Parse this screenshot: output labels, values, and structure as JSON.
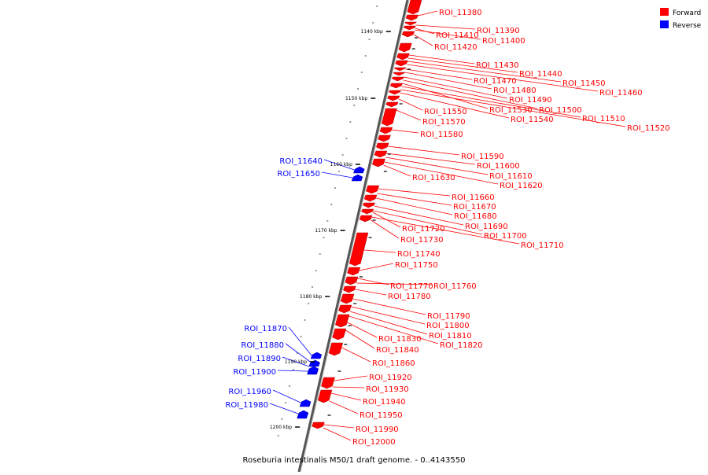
{
  "caption": "Roseburia intestinalis M50/1 draft genome. - 0..4143550",
  "legend": [
    {
      "label": "Forward",
      "color": "#ff0000"
    },
    {
      "label": "Reverse",
      "color": "#0000ff"
    }
  ],
  "colors": {
    "forward": "#ff0000",
    "reverse": "#0000ff",
    "backbone": "#777777"
  },
  "ticks": [
    "1140 kbp",
    "1150 kbp",
    "1160 kbp",
    "1170 kbp",
    "1180 kbp",
    "1190 kbp",
    "1200 kbp"
  ],
  "forward_labels": [
    "ROI_11380",
    "ROI_11390",
    "ROI_11410",
    "ROI_11400",
    "ROI_11420",
    "ROI_11430",
    "ROI_11440",
    "ROI_11450",
    "ROI_11460",
    "ROI_11470",
    "ROI_11480",
    "ROI_11490",
    "ROI_11500",
    "ROI_11530",
    "ROI_11510",
    "ROI_11520",
    "ROI_11540",
    "ROI_11550",
    "ROI_11570",
    "ROI_11580",
    "ROI_11590",
    "ROI_11600",
    "ROI_11610",
    "ROI_11620",
    "ROI_11630",
    "ROI_11660",
    "ROI_11670",
    "ROI_11680",
    "ROI_11690",
    "ROI_11700",
    "ROI_11710",
    "ROI_11720",
    "ROI_11730",
    "ROI_11740",
    "ROI_11750",
    "ROI_11770",
    "ROI_11760",
    "ROI_11780",
    "ROI_11790",
    "ROI_11800",
    "ROI_11810",
    "ROI_11820",
    "ROI_11830",
    "ROI_11840",
    "ROI_11860",
    "ROI_11920",
    "ROI_11930",
    "ROI_11940",
    "ROI_11950",
    "ROI_11990",
    "ROI_12000"
  ],
  "reverse_labels": [
    "ROI_11640",
    "ROI_11650",
    "ROI_11870",
    "ROI_11880",
    "ROI_11890",
    "ROI_11900",
    "ROI_11960",
    "ROI_11980"
  ]
}
